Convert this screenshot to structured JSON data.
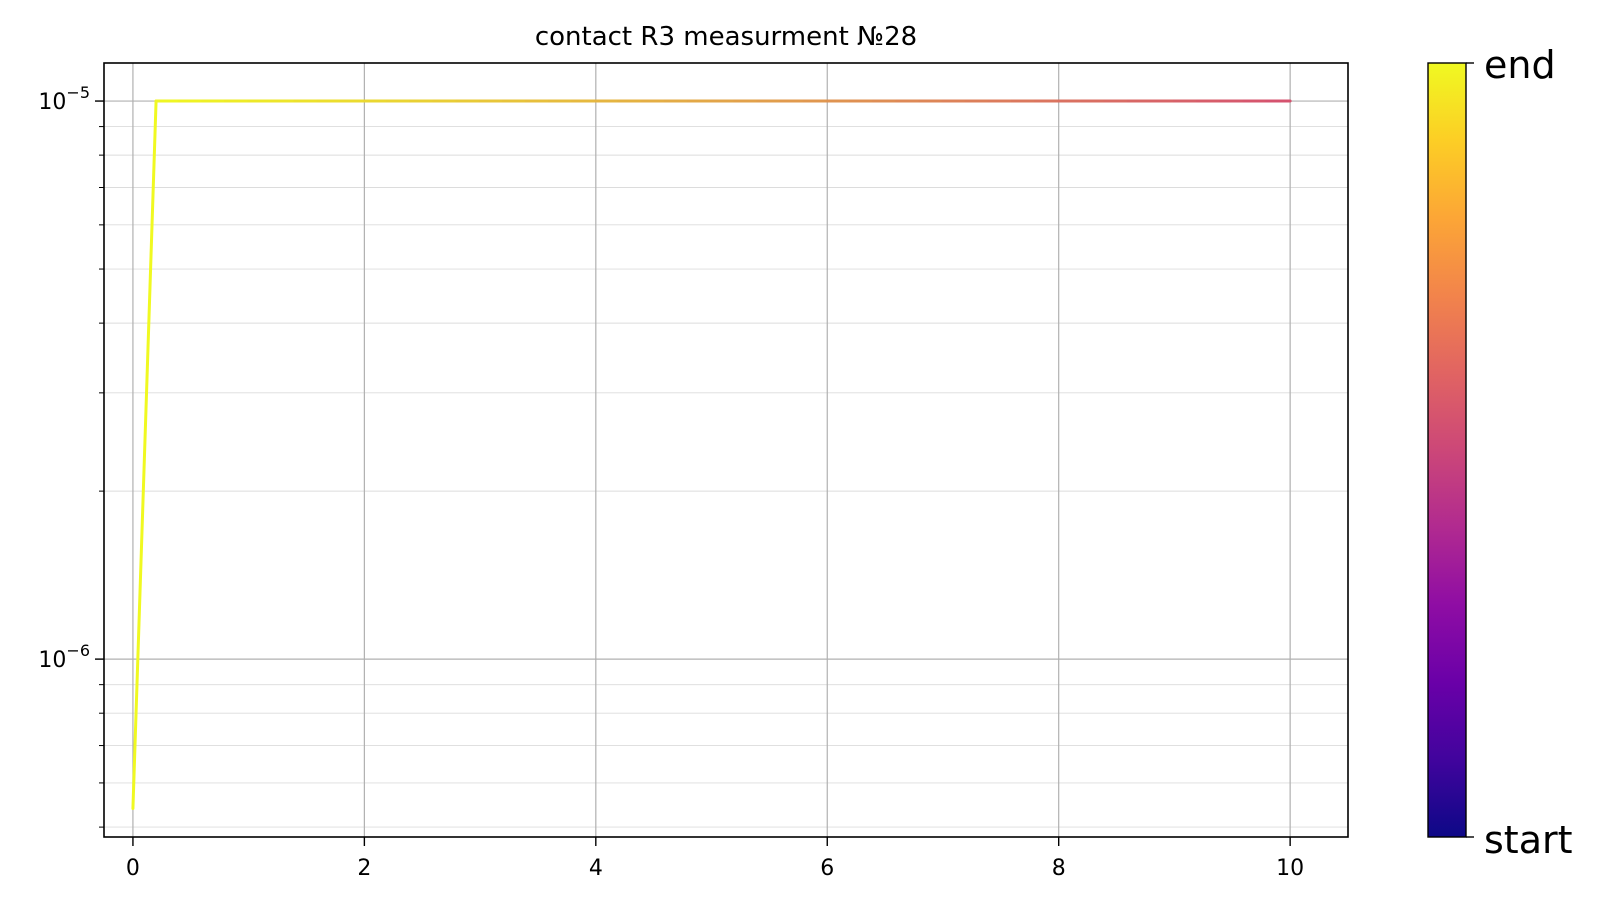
{
  "chart_data": {
    "type": "line",
    "title": "contact R3 measurment №28",
    "xlabel": "",
    "ylabel": "",
    "x_ticks": [
      "0",
      "2",
      "4",
      "6",
      "8",
      "10"
    ],
    "xlim": [
      -0.25,
      10.5
    ],
    "ylim": [
      4.8e-07,
      1.17e-05
    ],
    "y_scale": "log",
    "y_ticks": [
      {
        "value": 1e-05,
        "base": "10",
        "exp": "−5"
      },
      {
        "value": 1e-06,
        "base": "10",
        "exp": "−6"
      }
    ],
    "grid": true,
    "colormap": "plasma",
    "colorbar": {
      "top_label": "end",
      "bottom_label": "start"
    },
    "colormap_stops": [
      "#0d0887",
      "#41049d",
      "#6a00a8",
      "#8f0da4",
      "#b12a90",
      "#cc4778",
      "#e16462",
      "#f2844b",
      "#fca636",
      "#fcce25",
      "#f0f921"
    ],
    "series": [
      {
        "x": [
          0,
          0.2,
          0.4,
          0.6,
          0.8,
          1.0,
          1.2,
          1.4,
          1.6,
          1.8,
          2.0,
          2.2,
          2.4,
          2.6,
          2.8,
          3.0,
          3.2,
          3.4,
          3.6,
          3.8,
          4.0,
          4.2,
          4.4,
          4.6,
          4.8,
          5.0,
          5.2,
          5.4,
          5.6,
          5.8,
          6.0,
          6.2,
          6.4,
          6.6,
          6.8,
          7.0,
          7.2,
          7.4,
          7.6,
          7.8,
          8.0,
          8.2,
          8.4,
          8.6,
          8.8,
          9.0,
          9.2,
          9.4,
          9.6,
          9.8,
          10.0
        ],
        "y": [
          5.4e-07,
          1e-05,
          1e-05,
          1e-05,
          1e-05,
          1e-05,
          1e-05,
          1e-05,
          1e-05,
          1e-05,
          1e-05,
          1e-05,
          1e-05,
          1e-05,
          1e-05,
          1e-05,
          1e-05,
          1e-05,
          1e-05,
          1e-05,
          1e-05,
          1e-05,
          1e-05,
          1e-05,
          1e-05,
          1e-05,
          1e-05,
          1e-05,
          1e-05,
          1e-05,
          1e-05,
          1e-05,
          1e-05,
          1e-05,
          1e-05,
          1e-05,
          1e-05,
          1e-05,
          1e-05,
          1e-05,
          1e-05,
          1e-05,
          1e-05,
          1e-05,
          1e-05,
          1e-05,
          1e-05,
          1e-05,
          1e-05,
          1e-05,
          1e-05
        ],
        "color_start": "#f0f921",
        "color_end": "#d5536f"
      }
    ]
  }
}
